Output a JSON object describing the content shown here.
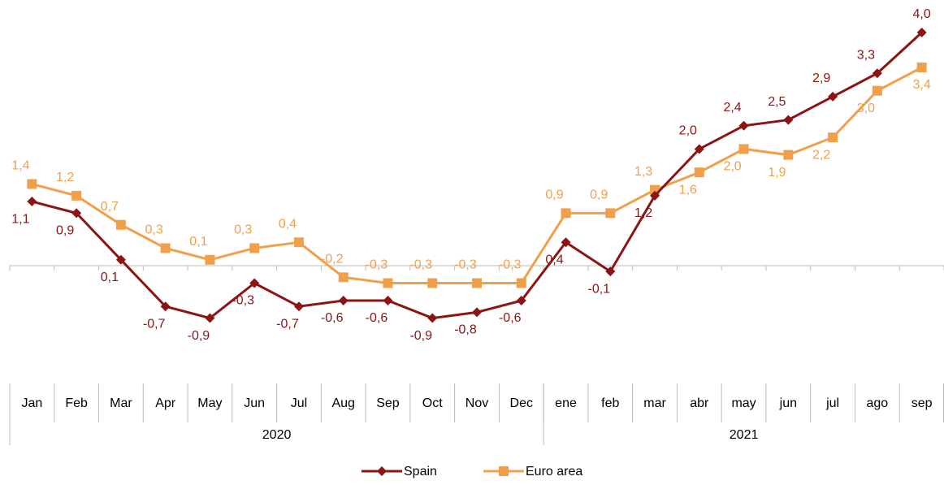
{
  "chart_data": {
    "type": "line",
    "categories": [
      "Jan",
      "Feb",
      "Mar",
      "Apr",
      "May",
      "Jun",
      "Jul",
      "Aug",
      "Sep",
      "Oct",
      "Nov",
      "Dec",
      "ene",
      "feb",
      "mar",
      "abr",
      "may",
      "jun",
      "jul",
      "ago",
      "sep"
    ],
    "groups": [
      {
        "label": "2020",
        "span": 12
      },
      {
        "label": "2021",
        "span": 9
      }
    ],
    "series": [
      {
        "name": "Spain",
        "color": "#8b1414",
        "marker": "diamond",
        "values": [
          1.1,
          0.9,
          0.1,
          -0.7,
          -0.9,
          -0.3,
          -0.7,
          -0.6,
          -0.6,
          -0.9,
          -0.8,
          -0.6,
          0.4,
          -0.1,
          1.2,
          2.0,
          2.4,
          2.5,
          2.9,
          3.3,
          4.0
        ],
        "value_labels": [
          "1,1",
          "0,9",
          "0,1",
          "-0,7",
          "-0,9",
          "-0,3",
          "-0,7",
          "-0,6",
          "-0,6",
          "-0,9",
          "-0,8",
          "-0,6",
          "0,4",
          "-0,1",
          "1,2",
          "2,0",
          "2,4",
          "2,5",
          "2,9",
          "3,3",
          "4,0"
        ]
      },
      {
        "name": "Euro area",
        "color": "#f0a04b",
        "marker": "square",
        "values": [
          1.4,
          1.2,
          0.7,
          0.3,
          0.1,
          0.3,
          0.4,
          -0.2,
          -0.3,
          -0.3,
          -0.3,
          -0.3,
          0.9,
          0.9,
          1.3,
          1.6,
          2.0,
          1.9,
          2.2,
          3.0,
          3.4
        ],
        "value_labels": [
          "1,4",
          "1,2",
          "0,7",
          "0,3",
          "0,1",
          "0,3",
          "0,4",
          "-0,2",
          "-0,3",
          "-0,3",
          "-0,3",
          "-0,3",
          "0,9",
          "0,9",
          "1,3",
          "1,6",
          "2,0",
          "1,9",
          "2,2",
          "3,0",
          "3,4"
        ]
      }
    ],
    "ylim": [
      -1.5,
      4.5
    ],
    "legend": "bottom"
  }
}
